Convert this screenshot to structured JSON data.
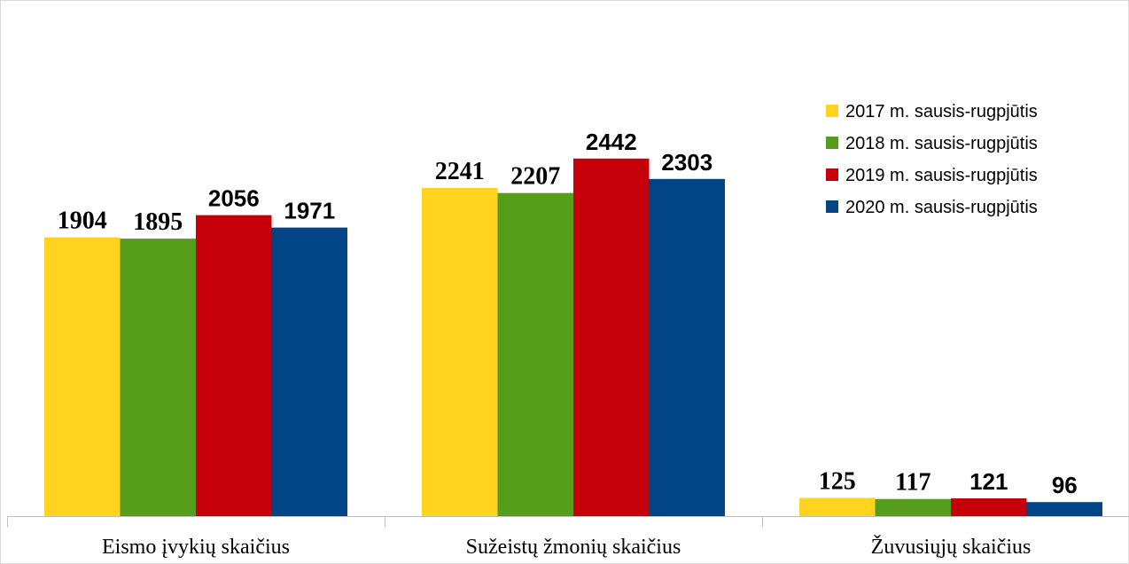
{
  "chart_data": {
    "type": "bar",
    "categories": [
      "Eismo įvykių skaičius",
      "Sužeistų žmonių skaičius",
      "Žuvusiųjų skaičius"
    ],
    "series": [
      {
        "name": "2017 m. sausis-rugpjūtis",
        "color": "#FFD320",
        "values": [
          1904,
          2241,
          125
        ]
      },
      {
        "name": "2018 m. sausis-rugpjūtis",
        "color": "#579D1C",
        "values": [
          1895,
          2207,
          117
        ]
      },
      {
        "name": "2019 m. sausis-rugpjūtis",
        "color": "#C5000B",
        "values": [
          2056,
          2442,
          121
        ]
      },
      {
        "name": "2020 m. sausis-rugpjūtis",
        "color": "#004586",
        "values": [
          1971,
          2303,
          96
        ]
      }
    ],
    "ylim": [
      0,
      3000
    ],
    "grid": false,
    "legend": "right",
    "title": "",
    "xlabel": "",
    "ylabel": ""
  }
}
